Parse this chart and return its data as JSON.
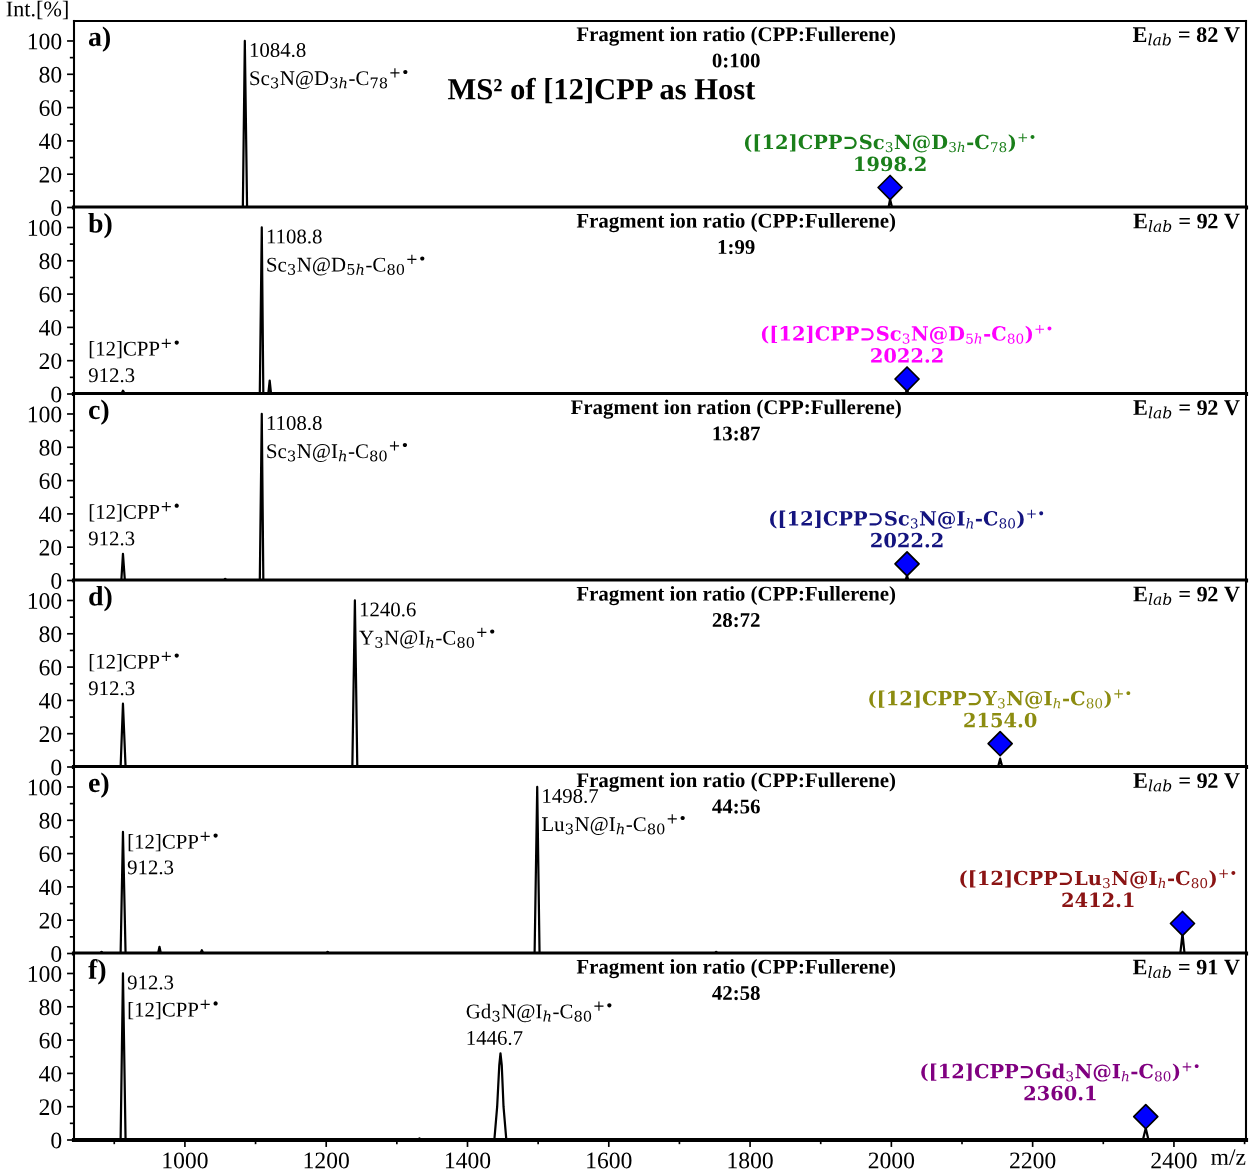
{
  "chart_data": [
    {
      "type": "line",
      "title": "a)",
      "subtitle": "Fragment ion ratio (CPP:Fullerene)\n0:100",
      "ylabel": "Int.[%]",
      "xlim": [
        843,
        2502
      ],
      "xticks": [
        {
          "value": 900,
          "label": null
        },
        1000,
        {
          "value": 1100,
          "label": null
        },
        1200,
        {
          "value": 1300,
          "label": null
        },
        1400,
        {
          "value": 1500,
          "label": null
        },
        1600,
        {
          "value": 1700,
          "label": null
        },
        1800,
        {
          "value": 1900,
          "label": null
        },
        2000,
        {
          "value": 2100,
          "label": null
        },
        2200,
        {
          "value": 2300,
          "label": null
        },
        2400,
        {
          "value": 2500,
          "label": null
        }
      ],
      "ylim": [
        0,
        112
      ],
      "yticks": [
        0,
        {
          "value": 10,
          "label": null
        },
        20,
        {
          "value": 30,
          "label": null
        },
        40,
        {
          "value": 50,
          "label": null
        },
        60,
        {
          "value": 70,
          "label": null
        },
        80,
        {
          "value": 90,
          "label": null
        },
        100
      ],
      "tick_labels": "y",
      "series": [
        {
          "color": "#000000",
          "marker": "none",
          "x": [
            843,
            1082,
            1084.8,
            1088,
            1996,
            1998.2,
            2001,
            2502
          ],
          "values": [
            0,
            0,
            100,
            0,
            0,
            5,
            0,
            0
          ]
        },
        {
          "type": "scatter",
          "name": "([12]CPP⊃Sc$_{3}$N@D$_{3h}$-C$_{78}$)$^{+•}$\n1998.2",
          "color": "#1a7f1a",
          "colors": [
            "#0000ff"
          ],
          "marker": "diamond",
          "x": [
            1998.2
          ],
          "values": [
            12
          ]
        }
      ],
      "annotations": [
        "E$_{lab}$ = 82 V",
        "MS² of [12]CPP as Host",
        {
          "text": "1084.8",
          "x": 1084.8,
          "y": 100
        },
        {
          "text": "Sc$_{3}$N@D$_{3h}$-C$_{78}$$^{+•}$",
          "x": 1084.8,
          "y": 100
        }
      ]
    },
    {
      "type": "line",
      "title": "b)",
      "subtitle": "Fragment ion ratio (CPP:Fullerene)\n1:99",
      "xlim": [
        843,
        2502
      ],
      "xticks": [
        {
          "value": 900,
          "label": null
        },
        1000,
        {
          "value": 1100,
          "label": null
        },
        1200,
        {
          "value": 1300,
          "label": null
        },
        1400,
        {
          "value": 1500,
          "label": null
        },
        1600,
        {
          "value": 1700,
          "label": null
        },
        1800,
        {
          "value": 1900,
          "label": null
        },
        2000,
        {
          "value": 2100,
          "label": null
        },
        2200,
        {
          "value": 2300,
          "label": null
        },
        2400,
        {
          "value": 2500,
          "label": null
        }
      ],
      "ylim": [
        0,
        112
      ],
      "yticks": [
        0,
        {
          "value": 10,
          "label": null
        },
        20,
        {
          "value": 30,
          "label": null
        },
        40,
        {
          "value": 50,
          "label": null
        },
        60,
        {
          "value": 70,
          "label": null
        },
        80,
        {
          "value": 90,
          "label": null
        },
        100
      ],
      "tick_labels": "y",
      "series": [
        {
          "color": "#000000",
          "marker": "none",
          "x": [
            843,
            910,
            912.3,
            915,
            1106,
            1108.8,
            1111,
            1118,
            1120,
            1122,
            2020,
            2022.2,
            2024,
            2502
          ],
          "values": [
            0,
            0,
            2,
            0,
            0,
            100,
            0,
            0,
            8,
            0,
            0,
            3,
            0,
            0
          ]
        },
        {
          "type": "scatter",
          "name": "([12]CPP⊃Sc$_{3}$N@D$_{5h}$-C$_{80}$)$^{+•}$\n2022.2",
          "color": "#ff00ff",
          "colors": [
            "#0000ff"
          ],
          "marker": "diamond",
          "x": [
            2022.2
          ],
          "values": [
            9
          ]
        }
      ],
      "annotations": [
        "E$_{lab}$ = 92 V",
        {
          "text": "1108.8",
          "x": 1108.8,
          "y": 100
        },
        {
          "text": "Sc$_{3}$N@D$_{5h}$-C$_{80}$$^{+•}$",
          "x": 1108.8,
          "y": 100
        },
        {
          "text": "[12]CPP$^{+•}$",
          "x": 912.3,
          "y": 2
        },
        {
          "text": "912.3",
          "x": 912.3,
          "y": 2
        }
      ]
    },
    {
      "type": "line",
      "title": "c)",
      "subtitle": "Fragment ion ration (CPP:Fullerene)\n13:87",
      "xlim": [
        843,
        2502
      ],
      "xticks": [
        {
          "value": 900,
          "label": null
        },
        1000,
        {
          "value": 1100,
          "label": null
        },
        1200,
        {
          "value": 1300,
          "label": null
        },
        1400,
        {
          "value": 1500,
          "label": null
        },
        1600,
        {
          "value": 1700,
          "label": null
        },
        1800,
        {
          "value": 1900,
          "label": null
        },
        2000,
        {
          "value": 2100,
          "label": null
        },
        2200,
        {
          "value": 2300,
          "label": null
        },
        2400,
        {
          "value": 2500,
          "label": null
        }
      ],
      "ylim": [
        0,
        112
      ],
      "yticks": [
        0,
        {
          "value": 10,
          "label": null
        },
        20,
        {
          "value": 30,
          "label": null
        },
        40,
        {
          "value": 50,
          "label": null
        },
        60,
        {
          "value": 70,
          "label": null
        },
        80,
        {
          "value": 90,
          "label": null
        },
        100
      ],
      "tick_labels": "y",
      "series": [
        {
          "color": "#000000",
          "marker": "none",
          "x": [
            843,
            910,
            912.3,
            915,
            1055,
            1057,
            1059,
            1106,
            1108.8,
            1111,
            2020,
            2022.2,
            2024,
            2502
          ],
          "values": [
            0,
            0,
            16,
            0,
            0,
            1,
            0,
            0,
            100,
            0,
            0,
            3,
            0,
            0
          ]
        },
        {
          "type": "scatter",
          "name": "([12]CPP⊃Sc$_{3}$N@I$_{h}$-C$_{80}$)$^{+•}$\n2022.2",
          "color": "#14147f",
          "colors": [
            "#0000ff"
          ],
          "marker": "diamond",
          "x": [
            2022.2
          ],
          "values": [
            10
          ]
        }
      ],
      "annotations": [
        "E$_{lab}$ = 92 V",
        {
          "text": "1108.8",
          "x": 1108.8,
          "y": 100
        },
        {
          "text": "Sc$_{3}$N@I$_{h}$-C$_{80}$$^{+•}$",
          "x": 1108.8,
          "y": 100
        },
        {
          "text": "[12]CPP$^{+•}$",
          "x": 912.3,
          "y": 16
        },
        {
          "text": "912.3",
          "x": 912.3,
          "y": 16
        }
      ]
    },
    {
      "type": "line",
      "title": "d)",
      "subtitle": "Fragment ion ratio (CPP:Fullerene)\n28:72",
      "xlim": [
        843,
        2502
      ],
      "xticks": [
        {
          "value": 900,
          "label": null
        },
        1000,
        {
          "value": 1100,
          "label": null
        },
        1200,
        {
          "value": 1300,
          "label": null
        },
        1400,
        {
          "value": 1500,
          "label": null
        },
        1600,
        {
          "value": 1700,
          "label": null
        },
        1800,
        {
          "value": 1900,
          "label": null
        },
        2000,
        {
          "value": 2100,
          "label": null
        },
        2200,
        {
          "value": 2300,
          "label": null
        },
        2400,
        {
          "value": 2500,
          "label": null
        }
      ],
      "ylim": [
        0,
        112
      ],
      "yticks": [
        0,
        {
          "value": 10,
          "label": null
        },
        20,
        {
          "value": 30,
          "label": null
        },
        40,
        {
          "value": 50,
          "label": null
        },
        60,
        {
          "value": 70,
          "label": null
        },
        80,
        {
          "value": 90,
          "label": null
        },
        100
      ],
      "tick_labels": "y",
      "series": [
        {
          "color": "#000000",
          "marker": "none",
          "x": [
            843,
            909,
            912.3,
            916,
            1237,
            1240.6,
            1244,
            2151,
            2154.0,
            2157,
            2502
          ],
          "values": [
            0,
            0,
            38,
            0,
            0,
            100,
            0,
            0,
            5,
            0,
            0
          ]
        },
        {
          "type": "scatter",
          "name": "([12]CPP⊃Y$_{3}$N@I$_{h}$-C$_{80}$)$^{+•}$\n2154.0",
          "color": "#8c8c10",
          "colors": [
            "#0000ff"
          ],
          "marker": "diamond",
          "x": [
            2154.0
          ],
          "values": [
            14
          ]
        }
      ],
      "annotations": [
        "E$_{lab}$ = 92 V",
        {
          "text": "1240.6",
          "x": 1240.6,
          "y": 100
        },
        {
          "text": "Y$_{3}$N@I$_{h}$-C$_{80}$$^{+•}$",
          "x": 1240.6,
          "y": 100
        },
        {
          "text": "[12]CPP$^{+•}$",
          "x": 912.3,
          "y": 38
        },
        {
          "text": "912.3",
          "x": 912.3,
          "y": 38
        }
      ]
    },
    {
      "type": "line",
      "title": "e)",
      "subtitle": "Fragment ion ratio (CPP:Fullerene)\n44:56",
      "xlim": [
        843,
        2502
      ],
      "xticks": [
        {
          "value": 900,
          "label": null
        },
        1000,
        {
          "value": 1100,
          "label": null
        },
        1200,
        {
          "value": 1300,
          "label": null
        },
        1400,
        {
          "value": 1500,
          "label": null
        },
        1600,
        {
          "value": 1700,
          "label": null
        },
        1800,
        {
          "value": 1900,
          "label": null
        },
        2000,
        {
          "value": 2100,
          "label": null
        },
        2200,
        {
          "value": 2300,
          "label": null
        },
        2400,
        {
          "value": 2500,
          "label": null
        }
      ],
      "ylim": [
        0,
        112
      ],
      "yticks": [
        0,
        {
          "value": 10,
          "label": null
        },
        20,
        {
          "value": 30,
          "label": null
        },
        40,
        {
          "value": 50,
          "label": null
        },
        60,
        {
          "value": 70,
          "label": null
        },
        80,
        {
          "value": 90,
          "label": null
        },
        100
      ],
      "tick_labels": "y",
      "series": [
        {
          "color": "#000000",
          "marker": "none",
          "x": [
            843,
            880,
            882,
            884,
            909,
            912.3,
            916,
            962,
            964,
            966,
            1022,
            1024,
            1026,
            1200,
            1202,
            1204,
            1495,
            1498.7,
            1502,
            1750,
            1752,
            1754,
            2409,
            2412.1,
            2415,
            2502
          ],
          "values": [
            0,
            0,
            1,
            0,
            0,
            73,
            0,
            0,
            4,
            0,
            0,
            2,
            0,
            0,
            1,
            0,
            0,
            100,
            0,
            0,
            1,
            0,
            0,
            12,
            0,
            0
          ]
        },
        {
          "type": "scatter",
          "name": "([12]CPP⊃Lu$_{3}$N@I$_{h}$-C$_{80}$)$^{+•}$\n2412.1",
          "color": "#8b1414",
          "colors": [
            "#0000ff"
          ],
          "marker": "diamond",
          "x": [
            2412.1
          ],
          "values": [
            18
          ]
        }
      ],
      "annotations": [
        "E$_{lab}$ = 92 V",
        {
          "text": "1498.7",
          "x": 1498.7,
          "y": 100
        },
        {
          "text": "Lu$_{3}$N@I$_{h}$-C$_{80}$$^{+•}$",
          "x": 1498.7,
          "y": 100
        },
        {
          "text": "[12]CPP$^{+•}$",
          "x": 912.3,
          "y": 73
        },
        {
          "text": "912.3",
          "x": 912.3,
          "y": 73
        }
      ]
    },
    {
      "type": "line",
      "title": "f)",
      "subtitle": "Fragment ion ratio (CPP:Fullerene)\n42:58",
      "xlabel": "m/z",
      "xlim": [
        843,
        2502
      ],
      "xticks": [
        {
          "value": 900,
          "label": null
        },
        1000,
        {
          "value": 1100,
          "label": null
        },
        1200,
        {
          "value": 1300,
          "label": null
        },
        1400,
        {
          "value": 1500,
          "label": null
        },
        1600,
        {
          "value": 1700,
          "label": null
        },
        1800,
        {
          "value": 1900,
          "label": null
        },
        2000,
        {
          "value": 2100,
          "label": null
        },
        2200,
        {
          "value": 2300,
          "label": null
        },
        2400,
        {
          "value": 2500,
          "label": null
        }
      ],
      "ylim": [
        0,
        112
      ],
      "yticks": [
        0,
        {
          "value": 10,
          "label": null
        },
        20,
        {
          "value": 30,
          "label": null
        },
        40,
        {
          "value": 50,
          "label": null
        },
        60,
        {
          "value": 70,
          "label": null
        },
        80,
        {
          "value": 90,
          "label": null
        },
        100
      ],
      "series": [
        {
          "color": "#000000",
          "marker": "none",
          "x": [
            843,
            909,
            912.3,
            916,
            1329,
            1332,
            1335,
            1438,
            1442,
            1445,
            1446.7,
            1448.5,
            1451,
            1455,
            2356,
            2360.1,
            2364,
            2502
          ],
          "values": [
            0,
            0,
            100,
            0,
            0,
            1,
            0,
            0,
            20,
            45,
            52,
            45,
            20,
            0,
            0,
            7,
            0,
            0
          ]
        },
        {
          "type": "scatter",
          "name": "([12]CPP⊃Gd$_{3}$N@I$_{h}$-C$_{80}$)$^{+•}$\n2360.1",
          "color": "#800080",
          "colors": [
            "#0000ff"
          ],
          "marker": "diamond",
          "x": [
            2360.1
          ],
          "values": [
            14
          ]
        }
      ],
      "annotations": [
        "E$_{lab}$ = 91 V",
        {
          "text": "912.3",
          "x": 912.3,
          "y": 100
        },
        {
          "text": "[12]CPP$^{+•}$",
          "x": 912.3,
          "y": 100
        },
        {
          "text": "Gd$_{3}$N@I$_{h}$-C$_{80}$$^{+•}$",
          "x": 1446.7,
          "y": 52
        },
        {
          "text": "1446.7",
          "x": 1446.7,
          "y": 52
        }
      ]
    }
  ]
}
